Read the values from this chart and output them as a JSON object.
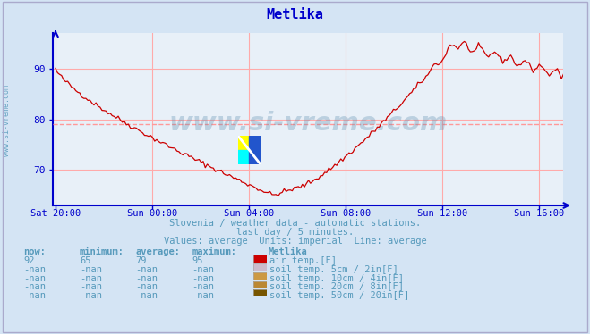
{
  "title": "Metlika",
  "bg_color": "#d4e4f4",
  "plot_bg_color": "#e8f0f8",
  "line_color": "#cc0000",
  "grid_color": "#ffaaaa",
  "axis_color": "#0000cc",
  "text_color": "#5599bb",
  "subtitle1": "Slovenia / weather data - automatic stations.",
  "subtitle2": "last day / 5 minutes.",
  "subtitle3": "Values: average  Units: imperial  Line: average",
  "xlabel_ticks": [
    "Sat 20:00",
    "Sun 00:00",
    "Sun 04:00",
    "Sun 08:00",
    "Sun 12:00",
    "Sun 16:00"
  ],
  "tick_hours": [
    0,
    4,
    8,
    12,
    16,
    20
  ],
  "xlim_hours": 21,
  "ylim": [
    63,
    97
  ],
  "yticks": [
    70,
    80,
    90
  ],
  "avg_line": 79,
  "watermark": "www.si-vreme.com",
  "legend_data": [
    {
      "now": "92",
      "min": "65",
      "avg": "79",
      "max": "95",
      "color": "#cc0000",
      "label": "air temp.[F]"
    },
    {
      "now": "-nan",
      "min": "-nan",
      "avg": "-nan",
      "max": "-nan",
      "color": "#ccbbcc",
      "label": "soil temp. 5cm / 2in[F]"
    },
    {
      "now": "-nan",
      "min": "-nan",
      "avg": "-nan",
      "max": "-nan",
      "color": "#cc9944",
      "label": "soil temp. 10cm / 4in[F]"
    },
    {
      "now": "-nan",
      "min": "-nan",
      "avg": "-nan",
      "max": "-nan",
      "color": "#bb8833",
      "label": "soil temp. 20cm / 8in[F]"
    },
    {
      "now": "-nan",
      "min": "-nan",
      "avg": "-nan",
      "max": "-nan",
      "color": "#775500",
      "label": "soil temp. 50cm / 20in[F]"
    }
  ],
  "col_headers": [
    "now:",
    "minimum:",
    "average:",
    "maximum:",
    "Metlika"
  ]
}
